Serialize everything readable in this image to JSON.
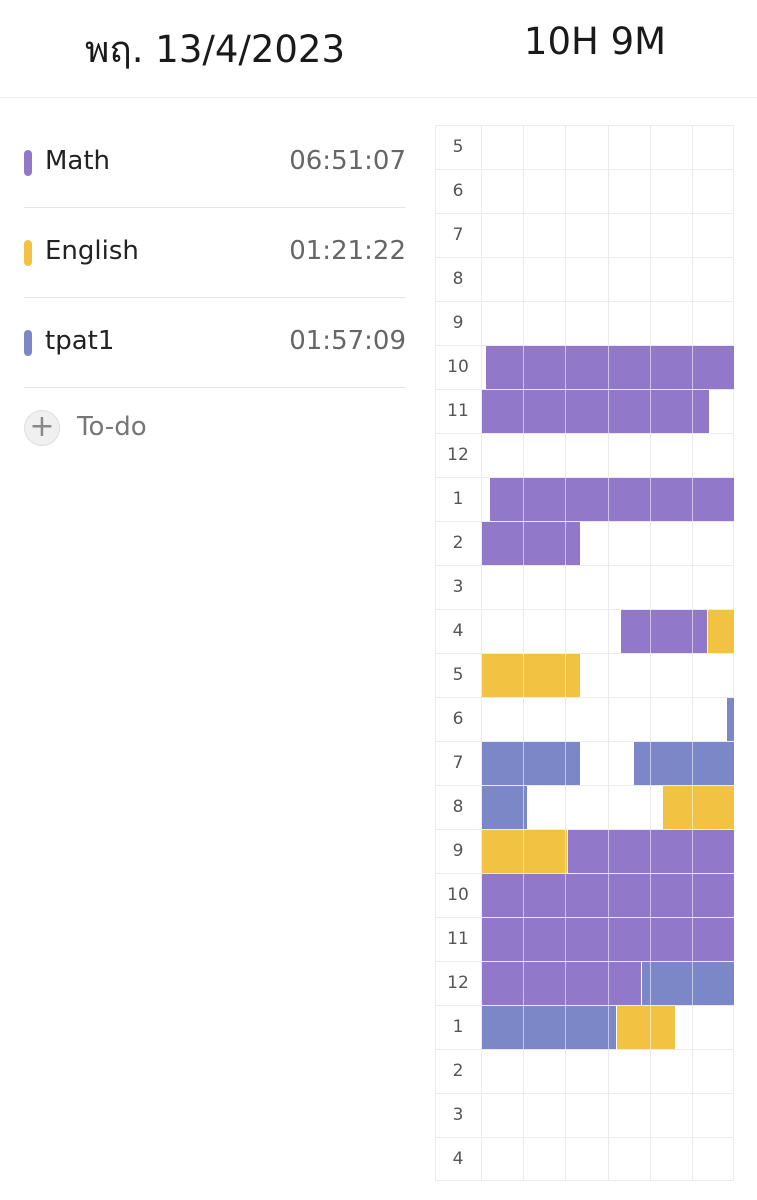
{
  "header": {
    "date": "พฤ. 13/4/2023",
    "total": "10H 9M"
  },
  "colors": {
    "math": "#9178c9",
    "english": "#f2c342",
    "tpat1": "#7b87c6",
    "grid": "#ebebeb"
  },
  "subjects": [
    {
      "name": "Math",
      "time": "06:51:07",
      "color": "#9178c9"
    },
    {
      "name": "English",
      "time": "01:21:22",
      "color": "#f2c342"
    },
    {
      "name": "tpat1",
      "time": "01:57:09",
      "color": "#7b87c6"
    }
  ],
  "todo": {
    "icon": "plus-icon",
    "label": "To-do"
  },
  "timeline": {
    "hours": [
      "5",
      "6",
      "7",
      "8",
      "9",
      "10",
      "11",
      "12",
      "1",
      "2",
      "3",
      "4",
      "5",
      "6",
      "7",
      "8",
      "9",
      "10",
      "11",
      "12",
      "1",
      "2",
      "3",
      "4"
    ],
    "slots_per_hour": 6,
    "segments": [
      {
        "row": 5,
        "start": 0.1,
        "end": 6,
        "subject": "math"
      },
      {
        "row": 6,
        "start": 0,
        "end": 5.4,
        "subject": "math"
      },
      {
        "row": 8,
        "start": 0.2,
        "end": 6,
        "subject": "math"
      },
      {
        "row": 9,
        "start": 0,
        "end": 2.35,
        "subject": "math"
      },
      {
        "row": 11,
        "start": 3.3,
        "end": 5.35,
        "subject": "math"
      },
      {
        "row": 11,
        "start": 5.35,
        "end": 6,
        "subject": "english"
      },
      {
        "row": 12,
        "start": 0,
        "end": 2.35,
        "subject": "english"
      },
      {
        "row": 13,
        "start": 5.8,
        "end": 6,
        "subject": "tpat1"
      },
      {
        "row": 14,
        "start": 0,
        "end": 2.35,
        "subject": "tpat1"
      },
      {
        "row": 14,
        "start": 3.6,
        "end": 6,
        "subject": "tpat1"
      },
      {
        "row": 15,
        "start": 0,
        "end": 1.1,
        "subject": "tpat1"
      },
      {
        "row": 15,
        "start": 4.3,
        "end": 6,
        "subject": "english"
      },
      {
        "row": 16,
        "start": 0,
        "end": 2.05,
        "subject": "english"
      },
      {
        "row": 16,
        "start": 2.05,
        "end": 6,
        "subject": "math"
      },
      {
        "row": 17,
        "start": 0,
        "end": 6,
        "subject": "math"
      },
      {
        "row": 18,
        "start": 0,
        "end": 6,
        "subject": "math"
      },
      {
        "row": 19,
        "start": 0,
        "end": 3.8,
        "subject": "math"
      },
      {
        "row": 19,
        "start": 3.8,
        "end": 6,
        "subject": "tpat1"
      },
      {
        "row": 20,
        "start": 0,
        "end": 3.2,
        "subject": "tpat1"
      },
      {
        "row": 20,
        "start": 3.2,
        "end": 4.6,
        "subject": "english"
      }
    ]
  }
}
